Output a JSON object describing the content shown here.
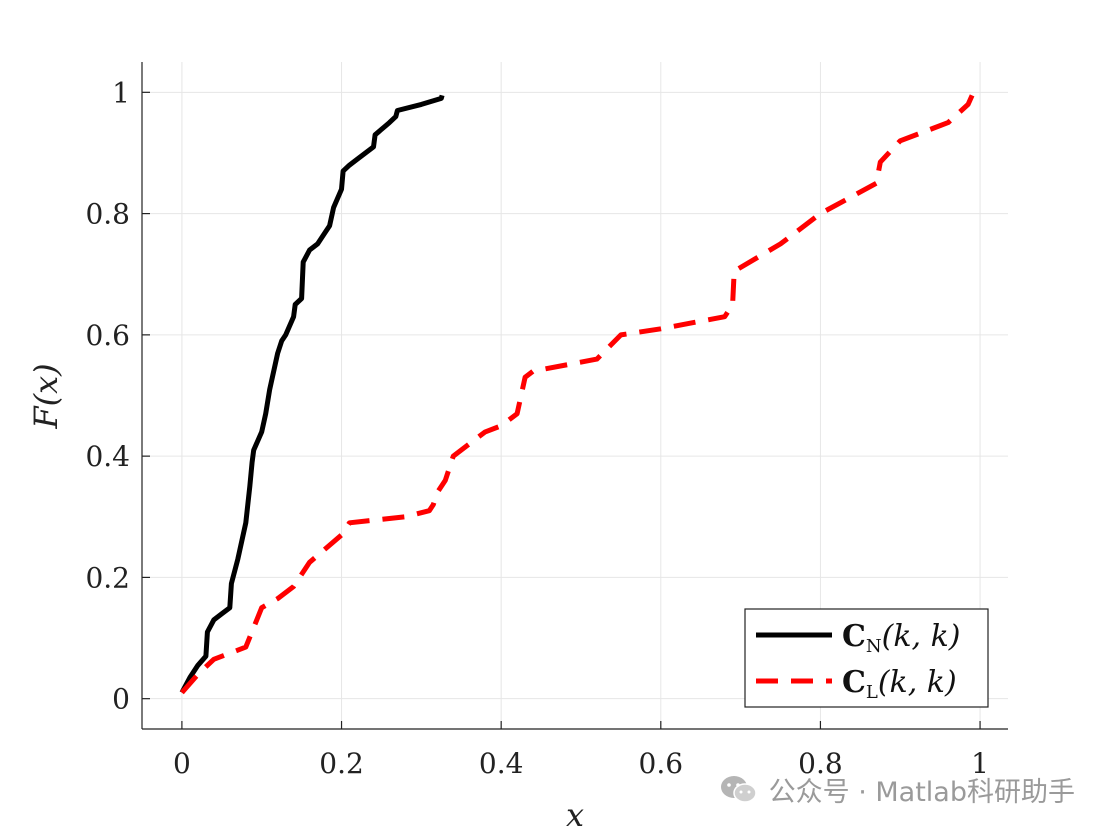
{
  "chart_data": {
    "type": "line",
    "title": "",
    "xlabel": "x",
    "ylabel": "F(x)",
    "xlim": [
      -0.05,
      1.035
    ],
    "ylim": [
      -0.05,
      1.05
    ],
    "xticks": [
      0,
      0.2,
      0.4,
      0.6,
      0.8,
      1
    ],
    "xtick_labels": [
      "0",
      "0.2",
      "0.4",
      "0.6",
      "0.8",
      "1"
    ],
    "yticks": [
      0,
      0.2,
      0.4,
      0.6,
      0.8,
      1
    ],
    "ytick_labels": [
      "0",
      "0.2",
      "0.4",
      "0.6",
      "0.8",
      "1"
    ],
    "grid": true,
    "legend_position": "bottom-right",
    "series": [
      {
        "name": "C_N(k, k)",
        "legend_main": "C",
        "legend_sub": "N",
        "legend_args": "(k, k)",
        "style": "solid",
        "color": "#000000",
        "x": [
          0,
          0.01,
          0.02,
          0.03,
          0.032,
          0.04,
          0.05,
          0.06,
          0.062,
          0.07,
          0.08,
          0.085,
          0.088,
          0.09,
          0.1,
          0.105,
          0.11,
          0.12,
          0.125,
          0.13,
          0.14,
          0.142,
          0.15,
          0.152,
          0.16,
          0.17,
          0.18,
          0.185,
          0.19,
          0.2,
          0.202,
          0.21,
          0.22,
          0.24,
          0.242,
          0.26,
          0.268,
          0.27,
          0.3,
          0.325,
          0.326
        ],
        "y": [
          0.01,
          0.035,
          0.055,
          0.07,
          0.11,
          0.13,
          0.14,
          0.15,
          0.19,
          0.23,
          0.29,
          0.35,
          0.39,
          0.41,
          0.44,
          0.47,
          0.51,
          0.57,
          0.59,
          0.6,
          0.63,
          0.65,
          0.66,
          0.72,
          0.74,
          0.75,
          0.77,
          0.78,
          0.81,
          0.84,
          0.87,
          0.88,
          0.89,
          0.91,
          0.93,
          0.95,
          0.96,
          0.97,
          0.98,
          0.99,
          0.995
        ]
      },
      {
        "name": "C_L(k, k)",
        "legend_main": "C",
        "legend_sub": "L",
        "legend_args": "(k, k)",
        "style": "dashed",
        "color": "#ff0000",
        "x": [
          0,
          0.02,
          0.04,
          0.06,
          0.08,
          0.1,
          0.12,
          0.14,
          0.16,
          0.2,
          0.21,
          0.28,
          0.31,
          0.315,
          0.32,
          0.33,
          0.34,
          0.36,
          0.37,
          0.38,
          0.4,
          0.42,
          0.43,
          0.44,
          0.52,
          0.55,
          0.6,
          0.64,
          0.68,
          0.69,
          0.692,
          0.75,
          0.8,
          0.87,
          0.875,
          0.9,
          0.96,
          0.985,
          0.99
        ],
        "y": [
          0.01,
          0.04,
          0.065,
          0.075,
          0.085,
          0.15,
          0.165,
          0.185,
          0.225,
          0.27,
          0.29,
          0.3,
          0.31,
          0.32,
          0.34,
          0.36,
          0.4,
          0.42,
          0.43,
          0.44,
          0.45,
          0.47,
          0.53,
          0.54,
          0.56,
          0.6,
          0.61,
          0.62,
          0.63,
          0.65,
          0.705,
          0.75,
          0.8,
          0.85,
          0.885,
          0.92,
          0.95,
          0.98,
          0.995
        ]
      }
    ]
  },
  "watermark": {
    "text": "公众号 · Matlab科研助手",
    "icon": "wechat-icon"
  }
}
